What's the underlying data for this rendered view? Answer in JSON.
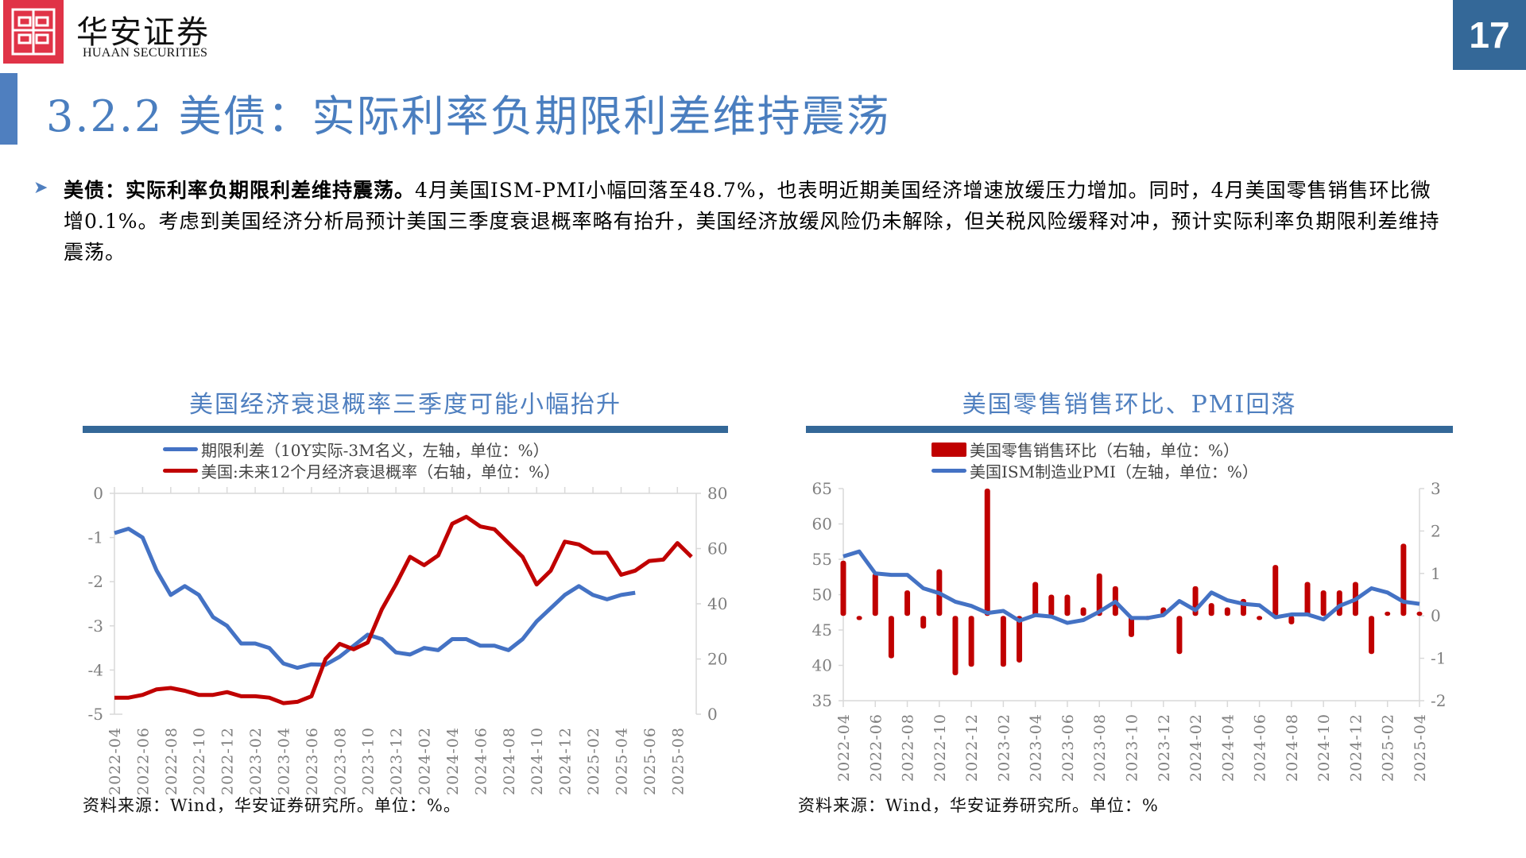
{
  "header": {
    "brand_cn": "华安证券",
    "brand_en": "HUAAN SECURITIES",
    "page_number": "17",
    "title": "3.2.2 美债：实际利率负期限利差维持震荡"
  },
  "body": {
    "bold_lead": "美债：实际利率负期限利差维持震荡。",
    "text": "4月美国ISM-PMI小幅回落至48.7%，也表明近期美国经济增速放缓压力增加。同时，4月美国零售销售环比微增0.1%。考虑到美国经济分析局预计美国三季度衰退概率略有抬升，美国经济放缓风险仍未解除，但关税风险缓释对冲，预计实际利率负期限利差维持震荡。"
  },
  "left_chart": {
    "title": "美国经济衰退概率三季度可能小幅抬升",
    "legend": [
      {
        "label": "期限利差（10Y实际-3M名义，左轴，单位：%）",
        "color": "#4472c4"
      },
      {
        "label": "美国:未来12个月经济衰退概率（右轴，单位：%）",
        "color": "#c00000"
      }
    ],
    "source": "资料来源：Wind，华安证券研究所。单位：%。"
  },
  "right_chart": {
    "title": "美国零售销售环比、PMI回落",
    "legend": [
      {
        "label": "美国零售销售环比（右轴，单位：%）",
        "color": "#c00000"
      },
      {
        "label": "美国ISM制造业PMI（左轴，单位：%）",
        "color": "#4472c4"
      }
    ],
    "source": "资料来源：Wind，华安证券研究所。单位：%"
  },
  "chart_data": [
    {
      "type": "line",
      "title": "美国经济衰退概率三季度可能小幅抬升",
      "x": [
        "2022-04",
        "2022-05",
        "2022-06",
        "2022-07",
        "2022-08",
        "2022-09",
        "2022-10",
        "2022-11",
        "2022-12",
        "2023-01",
        "2023-02",
        "2023-03",
        "2023-04",
        "2023-05",
        "2023-06",
        "2023-07",
        "2023-08",
        "2023-09",
        "2023-10",
        "2023-11",
        "2023-12",
        "2024-01",
        "2024-02",
        "2024-03",
        "2024-04",
        "2024-05",
        "2024-06",
        "2024-07",
        "2024-08",
        "2024-09",
        "2024-10",
        "2024-11",
        "2024-12",
        "2025-01",
        "2025-02",
        "2025-03",
        "2025-04",
        "2025-05",
        "2025-06",
        "2025-07",
        "2025-08",
        "2025-09"
      ],
      "x_tick_labels": [
        "2022-04",
        "2022-06",
        "2022-08",
        "2022-10",
        "2022-12",
        "2023-02",
        "2023-04",
        "2023-06",
        "2023-08",
        "2023-10",
        "2023-12",
        "2024-02",
        "2024-04",
        "2024-06",
        "2024-08",
        "2024-10",
        "2024-12",
        "2025-02",
        "2025-04",
        "2025-06",
        "2025-08"
      ],
      "series": [
        {
          "name": "期限利差（10Y实际-3M名义，左轴，单位：%）",
          "axis": "left",
          "color": "#4472c4",
          "values": [
            -0.9,
            -0.8,
            -1.0,
            -1.75,
            -2.3,
            -2.1,
            -2.3,
            -2.8,
            -3.0,
            -3.4,
            -3.4,
            -3.5,
            -3.85,
            -3.95,
            -3.87,
            -3.88,
            -3.7,
            -3.45,
            -3.2,
            -3.3,
            -3.6,
            -3.65,
            -3.5,
            -3.55,
            -3.3,
            -3.3,
            -3.45,
            -3.45,
            -3.55,
            -3.3,
            -2.9,
            -2.6,
            -2.3,
            -2.1,
            -2.3,
            -2.4,
            -2.3,
            -2.25,
            null,
            null,
            null,
            null
          ]
        },
        {
          "name": "美国:未来12个月经济衰退概率（右轴，单位：%）",
          "axis": "right",
          "color": "#c00000",
          "values": [
            6,
            6,
            7,
            9,
            9.5,
            8.5,
            7,
            7,
            8,
            6.5,
            6.5,
            6,
            4,
            4.5,
            6.5,
            20,
            25.5,
            23.5,
            26,
            38,
            47,
            57,
            54,
            57.5,
            69,
            71.5,
            68,
            67,
            62,
            57,
            47,
            52,
            62.5,
            61.5,
            58.5,
            58.5,
            50.5,
            52,
            55.5,
            56,
            62,
            57
          ]
        }
      ],
      "y_left": {
        "ticks": [
          0,
          -1,
          -2,
          -3,
          -4,
          -5
        ],
        "range": [
          -5,
          0
        ]
      },
      "y_right": {
        "ticks": [
          80,
          60,
          40,
          20,
          0
        ],
        "range": [
          0,
          80
        ]
      },
      "grid": false,
      "legend_position": "top"
    },
    {
      "type": "bar+line",
      "title": "美国零售销售环比、PMI回落",
      "x": [
        "2022-04",
        "2022-05",
        "2022-06",
        "2022-07",
        "2022-08",
        "2022-09",
        "2022-10",
        "2022-11",
        "2022-12",
        "2023-01",
        "2023-02",
        "2023-03",
        "2023-04",
        "2023-05",
        "2023-06",
        "2023-07",
        "2023-08",
        "2023-09",
        "2023-10",
        "2023-11",
        "2023-12",
        "2024-01",
        "2024-02",
        "2024-03",
        "2024-04",
        "2024-05",
        "2024-06",
        "2024-07",
        "2024-08",
        "2024-09",
        "2024-10",
        "2024-11",
        "2024-12",
        "2025-01",
        "2025-02",
        "2025-03",
        "2025-04"
      ],
      "x_tick_labels": [
        "2022-04",
        "2022-06",
        "2022-08",
        "2022-10",
        "2022-12",
        "2023-02",
        "2023-04",
        "2023-06",
        "2023-08",
        "2023-10",
        "2023-12",
        "2024-02",
        "2024-04",
        "2024-06",
        "2024-08",
        "2024-10",
        "2024-12",
        "2025-02",
        "2025-04"
      ],
      "series": [
        {
          "name": "美国零售销售环比（右轴，单位：%）",
          "type": "bar",
          "axis": "right",
          "color": "#c00000",
          "values": [
            1.3,
            -0.1,
            1.0,
            -1.0,
            0.6,
            -0.3,
            1.1,
            -1.4,
            -1.2,
            3.0,
            -1.2,
            -1.1,
            0.8,
            0.5,
            0.5,
            0.2,
            1.0,
            0.7,
            -0.5,
            -0.1,
            0.2,
            -0.9,
            0.7,
            0.3,
            0.2,
            0.4,
            -0.1,
            1.2,
            -0.2,
            0.8,
            0.6,
            0.6,
            0.8,
            -0.9,
            0.1,
            1.7,
            0.1
          ]
        },
        {
          "name": "美国ISM制造业PMI（左轴，单位：%）",
          "type": "line",
          "axis": "left",
          "color": "#4472c4",
          "values": [
            55.4,
            56.1,
            53.0,
            52.8,
            52.8,
            50.9,
            50.2,
            49.0,
            48.4,
            47.4,
            47.7,
            46.3,
            47.1,
            46.9,
            46.0,
            46.4,
            47.6,
            49.0,
            46.7,
            46.7,
            47.1,
            49.1,
            47.8,
            50.3,
            49.2,
            48.7,
            48.5,
            46.8,
            47.2,
            47.2,
            46.5,
            48.4,
            49.3,
            50.9,
            50.3,
            49.0,
            48.7
          ]
        }
      ],
      "y_left": {
        "ticks": [
          65,
          60,
          55,
          50,
          45,
          40,
          35
        ],
        "range": [
          35,
          65
        ]
      },
      "y_right": {
        "ticks": [
          3,
          2,
          1,
          0,
          -1,
          -2
        ],
        "range": [
          -2,
          3
        ]
      },
      "grid": false,
      "legend_position": "top"
    }
  ]
}
